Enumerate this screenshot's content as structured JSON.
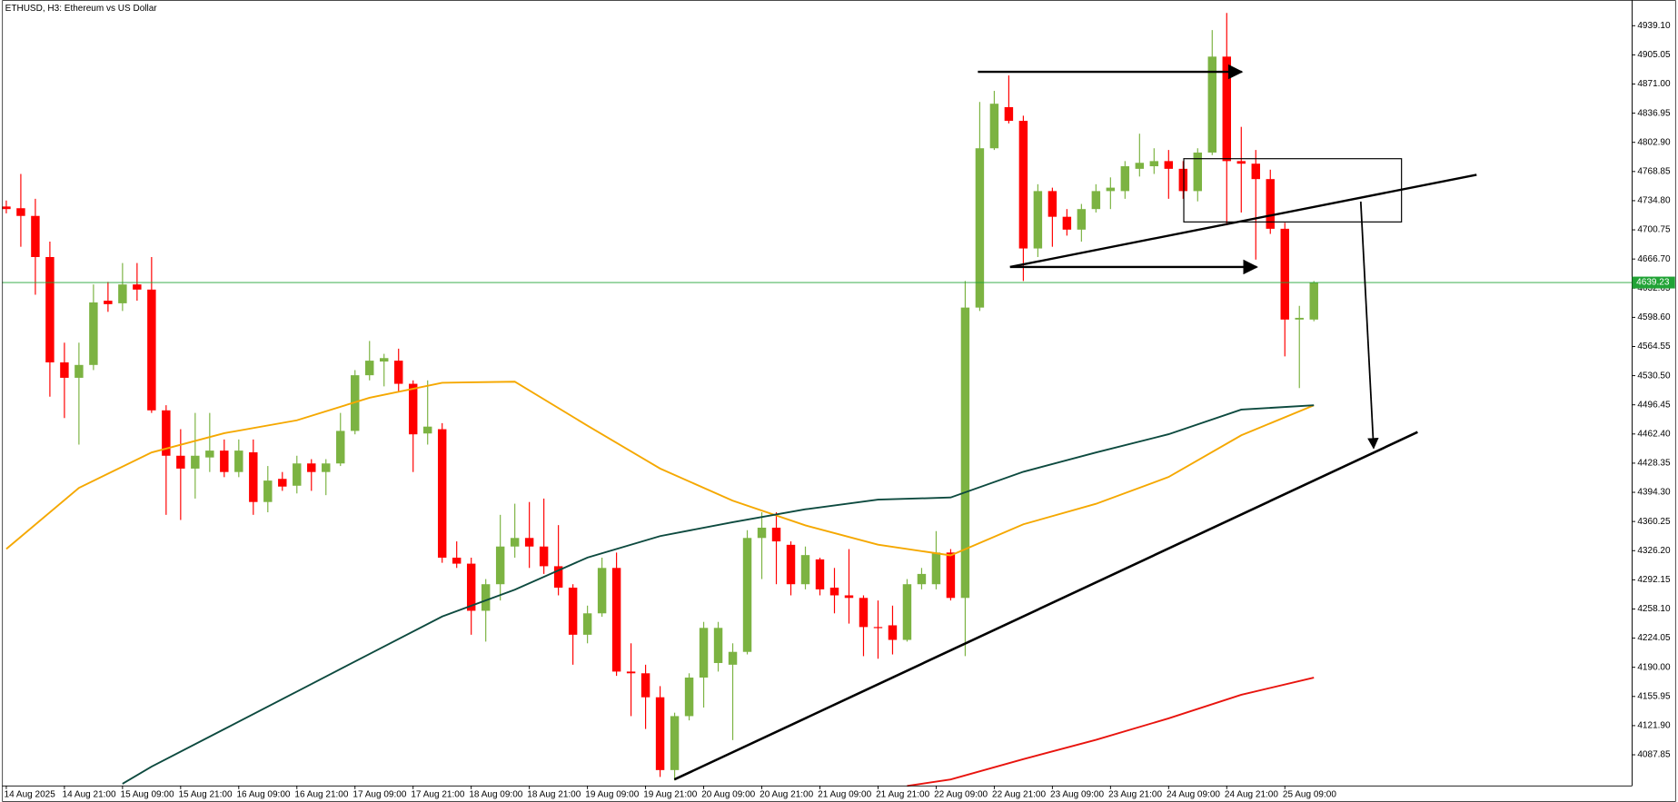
{
  "chart_data": {
    "type": "candlestick",
    "title": "ETHUSD, H3:  Ethereum vs US Dollar",
    "up_color": "#7cb342",
    "down_color": "#ff0000",
    "last_price": 4639.23,
    "last_price_color": "#21a336",
    "open": [
      4728,
      4726,
      4717,
      4669,
      4546,
      4528,
      4543,
      4618,
      4615,
      4637,
      4631,
      4490,
      4437,
      4422,
      4435,
      4443,
      4418,
      4441,
      4383,
      4410,
      4402,
      4428,
      4418,
      4428,
      4466,
      4531,
      4547,
      4548,
      4521,
      4463,
      4468,
      4318,
      4311,
      4256,
      4287,
      4331,
      4341,
      4331,
      4308,
      4283,
      4228,
      4253,
      4306,
      4185,
      4183,
      4155,
      4070,
      4133,
      4178,
      4195,
      4193,
      4208,
      4341,
      4353,
      4333,
      4287,
      4316,
      4283,
      4274,
      4271,
      4237,
      4239,
      4222,
      4287,
      4287,
      4324,
      4271,
      4610,
      4796,
      4844,
      4828,
      4679,
      4746,
      4716,
      4701,
      4725,
      4746,
      4746,
      4772,
      4775,
      4781,
      4772,
      4746,
      4791,
      4903,
      4781,
      4778,
      4760,
      4702,
      4596,
      4596
    ],
    "high": [
      4735,
      4766,
      4737,
      4687,
      4569,
      4569,
      4637,
      4640,
      4662,
      4662,
      4669,
      4496,
      4468,
      4487,
      4487,
      4456,
      4456,
      4456,
      4425,
      4418,
      4437,
      4433,
      4433,
      4487,
      4537,
      4571,
      4556,
      4562,
      4525,
      4525,
      4475,
      4337,
      4318,
      4293,
      4368,
      4381,
      4383,
      4387,
      4356,
      4287,
      4262,
      4318,
      4324,
      4218,
      4193,
      4168,
      4137,
      4183,
      4243,
      4243,
      4218,
      4350,
      4371,
      4371,
      4337,
      4331,
      4318,
      4306,
      4328,
      4274,
      4268,
      4262,
      4293,
      4306,
      4349,
      4328,
      4641,
      4850,
      4863,
      4881,
      4834,
      4754,
      4750,
      4725,
      4731,
      4754,
      4762,
      4781,
      4813,
      4796,
      4794,
      4781,
      4796,
      4934,
      4954,
      4821,
      4794,
      4771,
      4709,
      4612,
      4641
    ],
    "low": [
      4720,
      4681,
      4625,
      4506,
      4481,
      4450,
      4537,
      4605,
      4606,
      4618,
      4487,
      4368,
      4362,
      4387,
      4418,
      4412,
      4412,
      4368,
      4371,
      4396,
      4393,
      4396,
      4391,
      4425,
      4462,
      4525,
      4518,
      4512,
      4418,
      4450,
      4312,
      4306,
      4228,
      4220,
      4268,
      4318,
      4306,
      4299,
      4274,
      4193,
      4218,
      4249,
      4180,
      4133,
      4118,
      4062,
      4058,
      4128,
      4143,
      4185,
      4105,
      4205,
      4293,
      4287,
      4274,
      4281,
      4274,
      4253,
      4241,
      4203,
      4200,
      4205,
      4220,
      4281,
      4281,
      4268,
      4203,
      4606,
      4794,
      4825,
      4641,
      4669,
      4681,
      4694,
      4687,
      4721,
      4725,
      4737,
      4763,
      4766,
      4737,
      4737,
      4734,
      4788,
      4706,
      4721,
      4666,
      4696,
      4553,
      4516,
      4594
    ],
    "close": [
      4725,
      4717,
      4669,
      4546,
      4528,
      4543,
      4616,
      4614,
      4637,
      4631,
      4490,
      4437,
      4422,
      4437,
      4443,
      4418,
      4443,
      4383,
      4408,
      4401,
      4428,
      4418,
      4428,
      4466,
      4531,
      4548,
      4551,
      4521,
      4462,
      4471,
      4318,
      4311,
      4256,
      4287,
      4331,
      4341,
      4331,
      4308,
      4283,
      4228,
      4253,
      4306,
      4185,
      4183,
      4155,
      4070,
      4133,
      4178,
      4236,
      4236,
      4208,
      4341,
      4353,
      4337,
      4287,
      4321,
      4281,
      4274,
      4271,
      4237,
      4236,
      4222,
      4287,
      4299,
      4324,
      4271,
      4610,
      4796,
      4848,
      4828,
      4679,
      4746,
      4716,
      4701,
      4725,
      4746,
      4750,
      4775,
      4779,
      4781,
      4772,
      4746,
      4791,
      4903,
      4781,
      4778,
      4760,
      4702,
      4596,
      4598,
      4639.23
    ],
    "series": [
      {
        "color": "#f5a800",
        "x": [
          0,
          5,
          10,
          15,
          20,
          25,
          30,
          35,
          40,
          45,
          50,
          55,
          60,
          65,
          70,
          75,
          80,
          85,
          90
        ],
        "values": [
          4328.2,
          4399.5,
          4440.8,
          4463.4,
          4478.4,
          4504.7,
          4522.2,
          4523.5,
          4472.1,
          4422.1,
          4384.5,
          4355.7,
          4333.2,
          4320.7,
          4357.0,
          4380.8,
          4412.1,
          4460.9,
          4495.9
        ]
      },
      {
        "color": "#0d4a3f",
        "x": [
          8,
          10,
          15,
          20,
          25,
          30,
          35,
          40,
          45,
          50,
          55,
          60,
          65,
          70,
          75,
          80,
          85,
          90
        ],
        "values": [
          4054.0,
          4074.0,
          4117.9,
          4161.7,
          4205.5,
          4249.3,
          4280.6,
          4318.2,
          4343.2,
          4359.5,
          4374.5,
          4385.8,
          4388.3,
          4418.3,
          4440.8,
          4462.1,
          4490.9,
          4495.9
        ]
      },
      {
        "color": "#e8140e",
        "x": [
          62,
          65,
          70,
          75,
          80,
          85,
          90
        ],
        "values": [
          4051.5,
          4059.0,
          4082.8,
          4105.3,
          4130.4,
          4157.9,
          4177.9
        ]
      }
    ],
    "xlim": [
      -0.3,
      111.9
    ],
    "xticks": [
      {
        "value": 0,
        "label": "14 Aug 2025"
      },
      {
        "value": 4,
        "label": "14 Aug 21:00"
      },
      {
        "value": 8,
        "label": "15 Aug 09:00"
      },
      {
        "value": 12,
        "label": "15 Aug 21:00"
      },
      {
        "value": 16,
        "label": "16 Aug 09:00"
      },
      {
        "value": 20,
        "label": "16 Aug 21:00"
      },
      {
        "value": 24,
        "label": "17 Aug 09:00"
      },
      {
        "value": 28,
        "label": "17 Aug 21:00"
      },
      {
        "value": 32,
        "label": "18 Aug 09:00"
      },
      {
        "value": 36,
        "label": "18 Aug 21:00"
      },
      {
        "value": 40,
        "label": "19 Aug 09:00"
      },
      {
        "value": 44,
        "label": "19 Aug 21:00"
      },
      {
        "value": 48,
        "label": "20 Aug 09:00"
      },
      {
        "value": 52,
        "label": "20 Aug 21:00"
      },
      {
        "value": 56,
        "label": "21 Aug 09:00"
      },
      {
        "value": 60,
        "label": "21 Aug 21:00"
      },
      {
        "value": 64,
        "label": "22 Aug 09:00"
      },
      {
        "value": 68,
        "label": "22 Aug 21:00"
      },
      {
        "value": 72,
        "label": "23 Aug 09:00"
      },
      {
        "value": 76,
        "label": "23 Aug 21:00"
      },
      {
        "value": 80,
        "label": "24 Aug 09:00"
      },
      {
        "value": 84,
        "label": "24 Aug 21:00"
      },
      {
        "value": 88,
        "label": "25 Aug 09:00"
      }
    ],
    "ylim": [
      4051.5,
      4969.1
    ],
    "yticks": [
      {
        "value": 4939.1,
        "label": "4939.10"
      },
      4905.05,
      {
        "value": 4871,
        "label": "4871.00"
      },
      4836.95,
      {
        "value": 4802.9,
        "label": "4802.90"
      },
      4768.85,
      {
        "value": 4734.8,
        "label": "4734.80"
      },
      4700.75,
      {
        "value": 4666.7,
        "label": "4666.70"
      },
      4632.65,
      {
        "value": 4598.6,
        "label": "4598.60"
      },
      4564.55,
      {
        "value": 4530.5,
        "label": "4530.50"
      },
      4496.45,
      {
        "value": 4462.4,
        "label": "4462.40"
      },
      4428.35,
      {
        "value": 4394.3,
        "label": "4394.30"
      },
      4360.25,
      {
        "value": 4326.2,
        "label": "4326.20"
      },
      4292.15,
      {
        "value": 4258.1,
        "label": "4258.10"
      },
      4224.05,
      {
        "value": 4190,
        "label": "4190.00"
      },
      4155.95,
      {
        "value": 4121.9,
        "label": "4121.90"
      },
      4087.85
    ]
  }
}
